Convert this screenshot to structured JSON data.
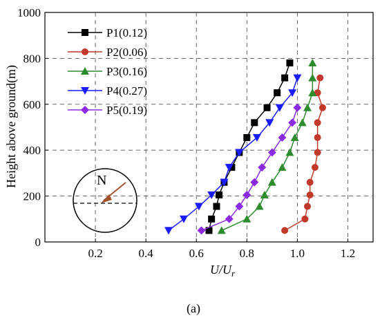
{
  "chart_data": {
    "type": "line",
    "xlabel": "U/U",
    "xlabel_sub": "r",
    "ylabel": "Height above ground(m)",
    "panel_label": "(a)",
    "xlim": [
      0.0,
      1.3
    ],
    "ylim": [
      0,
      1000
    ],
    "x_ticks": [
      0.2,
      0.4,
      0.6,
      0.8,
      1.0,
      1.2
    ],
    "x_tick_labels": [
      "0.2",
      "0.4",
      "0.6",
      "0.8",
      "1.0",
      "1.2"
    ],
    "y_ticks": [
      0,
      200,
      400,
      600,
      800,
      1000
    ],
    "y_tick_labels": [
      "0",
      "200",
      "400",
      "600",
      "800",
      "1000"
    ],
    "grid": true,
    "legend_position": "top-left",
    "compass_label": "N",
    "series": [
      {
        "name": "P1(0.12)",
        "color": "#000000",
        "marker": "square",
        "points": [
          [
            0.65,
            50
          ],
          [
            0.66,
            100
          ],
          [
            0.68,
            155
          ],
          [
            0.69,
            205
          ],
          [
            0.71,
            260
          ],
          [
            0.74,
            325
          ],
          [
            0.77,
            390
          ],
          [
            0.8,
            455
          ],
          [
            0.83,
            520
          ],
          [
            0.88,
            585
          ],
          [
            0.92,
            650
          ],
          [
            0.95,
            715
          ],
          [
            0.97,
            780
          ]
        ]
      },
      {
        "name": "P2(0.06)",
        "color": "#c0392b",
        "marker": "circle",
        "points": [
          [
            0.95,
            50
          ],
          [
            1.03,
            100
          ],
          [
            1.04,
            155
          ],
          [
            1.05,
            205
          ],
          [
            1.05,
            260
          ],
          [
            1.07,
            325
          ],
          [
            1.08,
            390
          ],
          [
            1.08,
            455
          ],
          [
            1.08,
            520
          ],
          [
            1.1,
            585
          ],
          [
            1.08,
            650
          ],
          [
            1.09,
            715
          ]
        ]
      },
      {
        "name": "P3(0.16)",
        "color": "#2e8b2e",
        "marker": "triangle-up",
        "points": [
          [
            0.7,
            50
          ],
          [
            0.8,
            100
          ],
          [
            0.85,
            155
          ],
          [
            0.87,
            205
          ],
          [
            0.9,
            260
          ],
          [
            0.94,
            325
          ],
          [
            0.97,
            390
          ],
          [
            0.99,
            455
          ],
          [
            1.02,
            520
          ],
          [
            1.04,
            585
          ],
          [
            1.06,
            650
          ],
          [
            1.06,
            715
          ],
          [
            1.06,
            780
          ]
        ]
      },
      {
        "name": "P4(0.27)",
        "color": "#1a1aff",
        "marker": "triangle-down",
        "points": [
          [
            0.49,
            50
          ],
          [
            0.55,
            100
          ],
          [
            0.61,
            155
          ],
          [
            0.66,
            205
          ],
          [
            0.71,
            260
          ],
          [
            0.73,
            325
          ],
          [
            0.77,
            390
          ],
          [
            0.84,
            455
          ],
          [
            0.89,
            520
          ],
          [
            0.93,
            585
          ],
          [
            0.98,
            650
          ],
          [
            1.0,
            715
          ]
        ]
      },
      {
        "name": "P5(0.19)",
        "color": "#8a2be2",
        "marker": "diamond",
        "points": [
          [
            0.62,
            50
          ],
          [
            0.73,
            100
          ],
          [
            0.77,
            155
          ],
          [
            0.8,
            205
          ],
          [
            0.83,
            260
          ],
          [
            0.86,
            325
          ],
          [
            0.9,
            390
          ],
          [
            0.94,
            455
          ],
          [
            0.98,
            520
          ],
          [
            1.0,
            585
          ]
        ]
      }
    ]
  }
}
